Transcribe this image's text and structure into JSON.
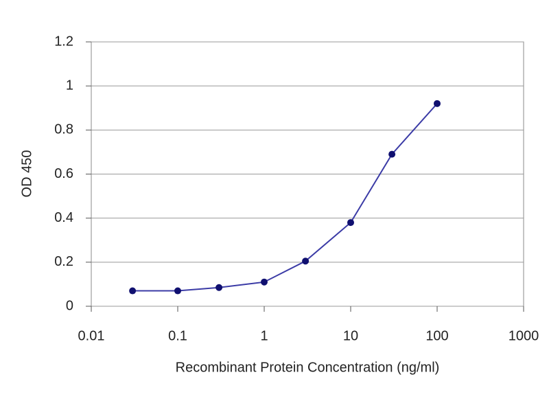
{
  "chart_data": {
    "type": "line",
    "x_label": "Recombinant Protein Concentration (ng/ml)",
    "y_label": "OD 450",
    "x": [
      0.03,
      0.1,
      0.3,
      1,
      3,
      10,
      30,
      100
    ],
    "values": [
      0.07,
      0.07,
      0.085,
      0.11,
      0.205,
      0.38,
      0.69,
      0.92
    ],
    "color": "#3b3ba6",
    "marker_color": "#101070",
    "xscale": "log",
    "xlim": [
      0.01,
      1000
    ],
    "xticks": [
      0.01,
      0.1,
      1,
      10,
      100,
      1000
    ],
    "ylim": [
      0,
      1.2
    ],
    "yticks": [
      0,
      0.2,
      0.4,
      0.6,
      0.8,
      1,
      1.2
    ],
    "grid": true
  }
}
